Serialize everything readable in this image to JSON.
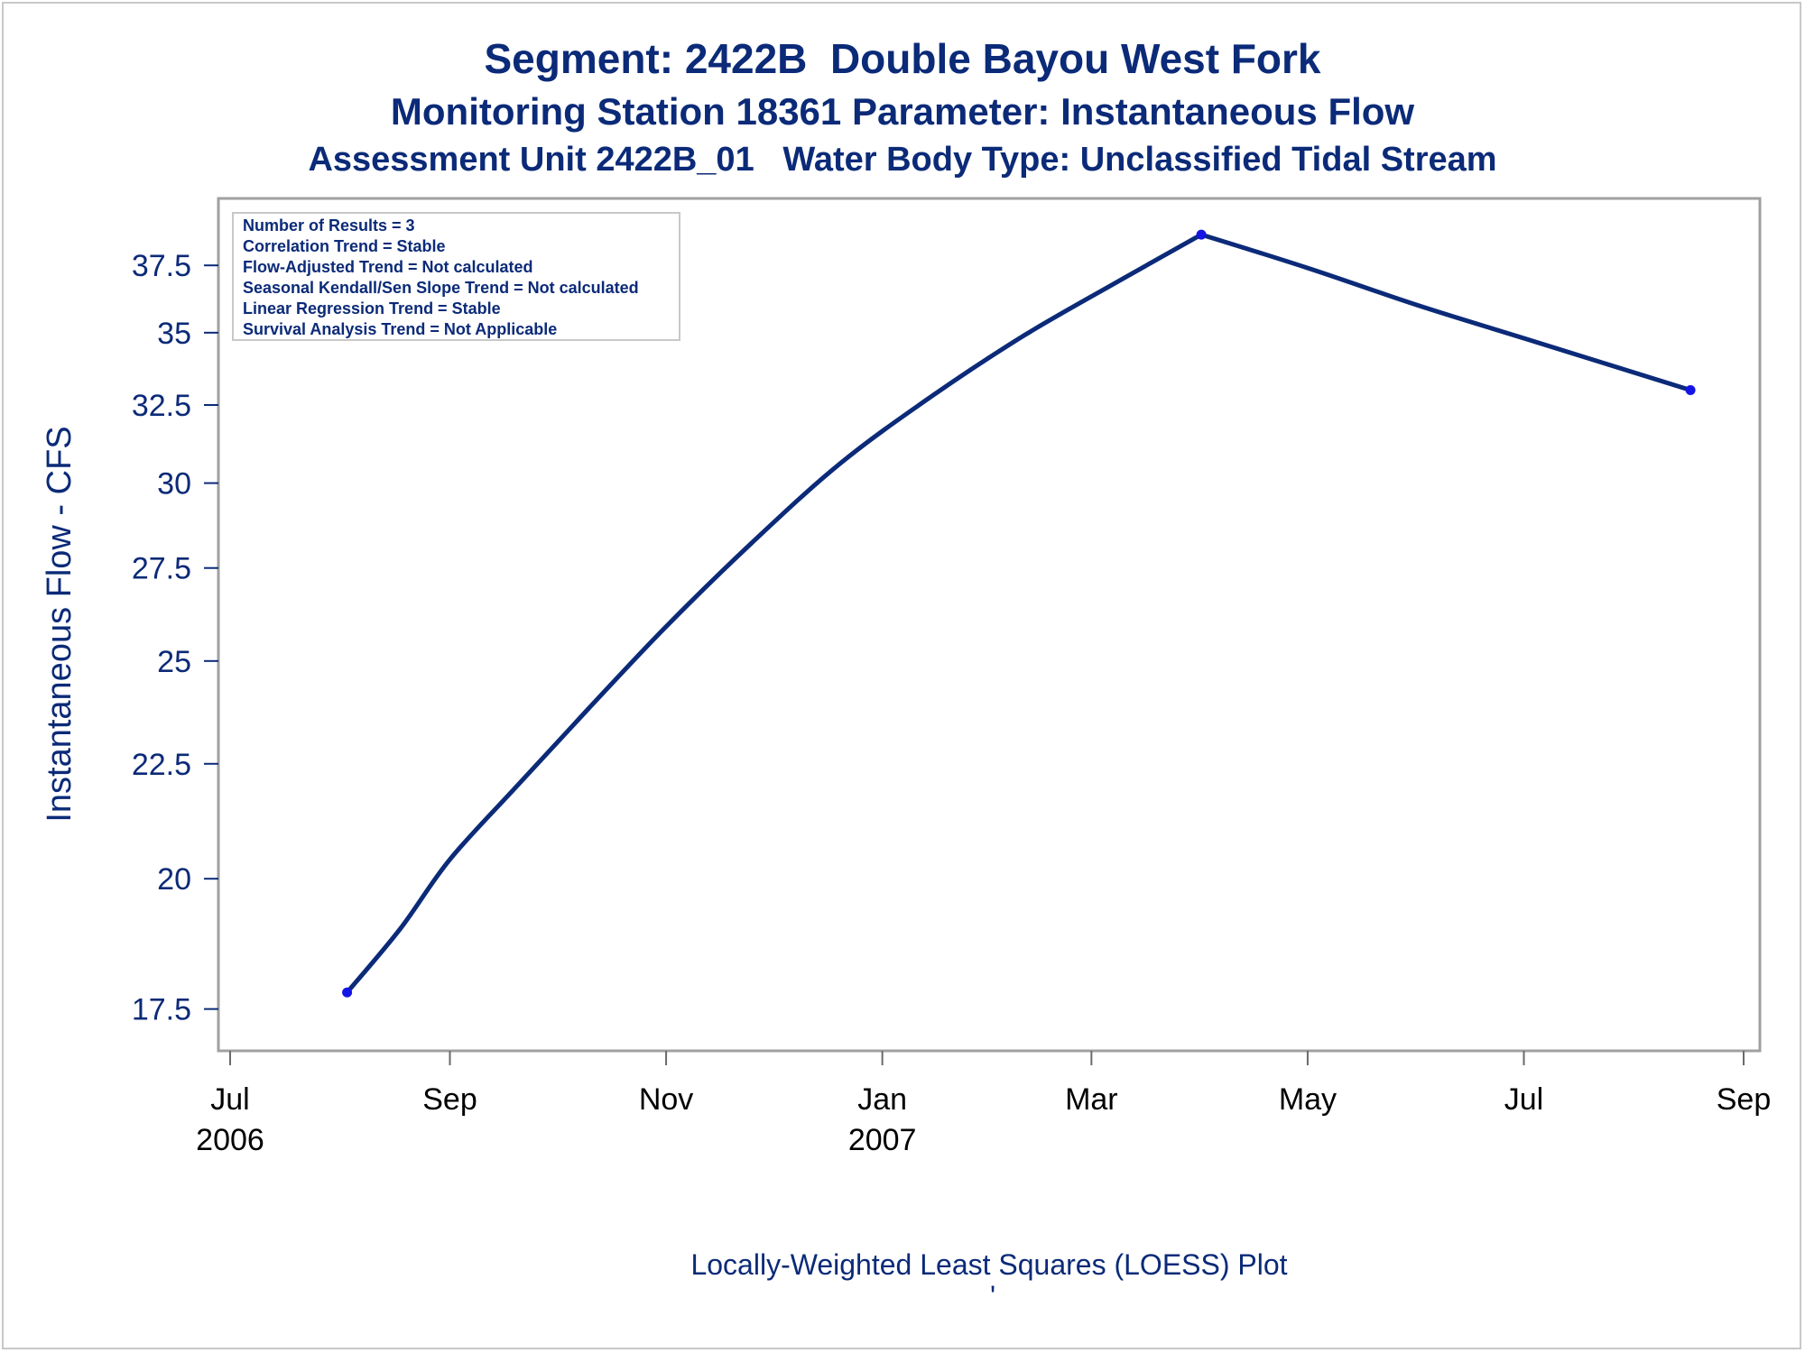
{
  "chart_data": {
    "type": "line",
    "title": "Segment: 2422B  Double Bayou West Fork",
    "subtitle": "Monitoring Station 18361 Parameter: Instantaneous Flow",
    "subtitle2": "Assessment Unit 2422B_01   Water Body Type: Unclassified Tidal Stream",
    "ylabel": "Instantaneous Flow - CFS",
    "footnote": "Locally-Weighted Least Squares (LOESS) Plot",
    "footnote2": "'",
    "y_scale": "log",
    "ylim": [
      17.0,
      39.5
    ],
    "y_ticks": [
      17.5,
      20,
      22.5,
      25,
      27.5,
      30,
      32.5,
      35,
      37.5
    ],
    "y_tick_labels": [
      "17.5",
      "20",
      "22.5",
      "25",
      "27.5",
      "30",
      "32.5",
      "35",
      "37.5"
    ],
    "xlim": [
      "2006-07-01",
      "2007-09-01"
    ],
    "x_ticks": [
      {
        "date": "2006-07-01",
        "label": "Jul",
        "year": "2006"
      },
      {
        "date": "2006-09-01",
        "label": "Sep",
        "year": ""
      },
      {
        "date": "2006-11-01",
        "label": "Nov",
        "year": ""
      },
      {
        "date": "2007-01-01",
        "label": "Jan",
        "year": "2007"
      },
      {
        "date": "2007-03-01",
        "label": "Mar",
        "year": ""
      },
      {
        "date": "2007-05-01",
        "label": "May",
        "year": ""
      },
      {
        "date": "2007-07-01",
        "label": "Jul",
        "year": ""
      },
      {
        "date": "2007-09-01",
        "label": "Sep",
        "year": ""
      }
    ],
    "points": [
      {
        "date": "2006-08-03",
        "value": 17.8
      },
      {
        "date": "2007-04-01",
        "value": 38.7
      },
      {
        "date": "2007-08-17",
        "value": 33.0
      }
    ],
    "loess_curve": [
      {
        "date": "2006-08-03",
        "value": 17.8
      },
      {
        "date": "2006-08-18",
        "value": 19.0
      },
      {
        "date": "2006-09-01",
        "value": 20.4
      },
      {
        "date": "2006-09-20",
        "value": 22.0
      },
      {
        "date": "2006-10-10",
        "value": 23.8
      },
      {
        "date": "2006-11-01",
        "value": 25.9
      },
      {
        "date": "2006-11-25",
        "value": 28.2
      },
      {
        "date": "2006-12-20",
        "value": 30.6
      },
      {
        "date": "2007-01-15",
        "value": 32.8
      },
      {
        "date": "2007-02-10",
        "value": 34.9
      },
      {
        "date": "2007-03-10",
        "value": 37.0
      },
      {
        "date": "2007-04-01",
        "value": 38.7
      },
      {
        "date": "2007-05-01",
        "value": 37.4
      },
      {
        "date": "2007-06-01",
        "value": 36.0
      },
      {
        "date": "2007-07-01",
        "value": 34.8
      },
      {
        "date": "2007-08-17",
        "value": 33.0
      }
    ],
    "legend": [
      "Number of Results = 3",
      "Correlation Trend = Stable",
      "Flow-Adjusted Trend = Not calculated",
      "Seasonal Kendall/Sen Slope Trend = Not calculated",
      "Linear Regression Trend = Stable",
      "Survival Analysis Trend = Not Applicable"
    ],
    "legend_placement": "top-left",
    "grid": false,
    "colors": {
      "line": "#0b2a78",
      "points": "#1414e6",
      "text": "#0b2a78",
      "frame": "#a0a0a0"
    }
  }
}
